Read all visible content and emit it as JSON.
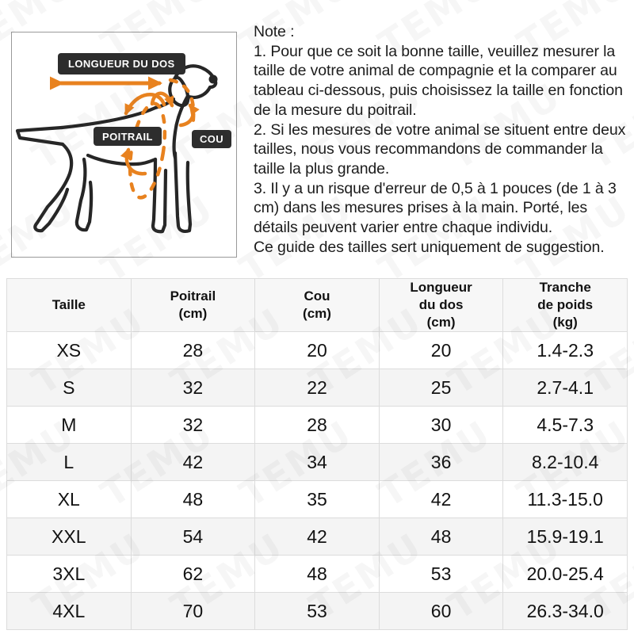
{
  "watermark": {
    "text": "TEMU"
  },
  "colors": {
    "accent_orange": "#e8821f",
    "badge_background": "#2d2d2d",
    "dog_outline": "#262626",
    "table_stripe": "#f4f4f4",
    "table_header_background": "#f7f7f7"
  },
  "diagram": {
    "labels": {
      "back": "LONGUEUR DU DOS",
      "chest": "POITRAIL",
      "neck": "COU"
    }
  },
  "note": {
    "title": "Note :",
    "items": [
      "1. Pour que ce soit la bonne taille, veuillez mesurer la taille de votre animal de compagnie et la comparer au tableau ci-dessous, puis choisissez la taille en fonction de la mesure du poitrail.",
      "2. Si les mesures de votre animal se situent entre deux tailles, nous vous recommandons de commander la taille la plus grande.",
      "3. Il y a un risque d'erreur de 0,5 à 1 pouces (de 1 à 3 cm) dans les mesures prises à la main. Porté, les détails peuvent varier entre chaque individu.",
      "Ce guide des tailles sert uniquement de suggestion."
    ]
  },
  "size_table": {
    "columns": [
      "Taille",
      "Poitrail\n(cm)",
      "Cou\n(cm)",
      "Longueur\ndu dos\n(cm)",
      "Tranche\nde poids\n(kg)"
    ],
    "rows": [
      [
        "XS",
        "28",
        "20",
        "20",
        "1.4-2.3"
      ],
      [
        "S",
        "32",
        "22",
        "25",
        "2.7-4.1"
      ],
      [
        "M",
        "32",
        "28",
        "30",
        "4.5-7.3"
      ],
      [
        "L",
        "42",
        "34",
        "36",
        "8.2-10.4"
      ],
      [
        "XL",
        "48",
        "35",
        "42",
        "11.3-15.0"
      ],
      [
        "XXL",
        "54",
        "42",
        "48",
        "15.9-19.1"
      ],
      [
        "3XL",
        "62",
        "48",
        "53",
        "20.0-25.4"
      ],
      [
        "4XL",
        "70",
        "53",
        "60",
        "26.3-34.0"
      ]
    ]
  }
}
